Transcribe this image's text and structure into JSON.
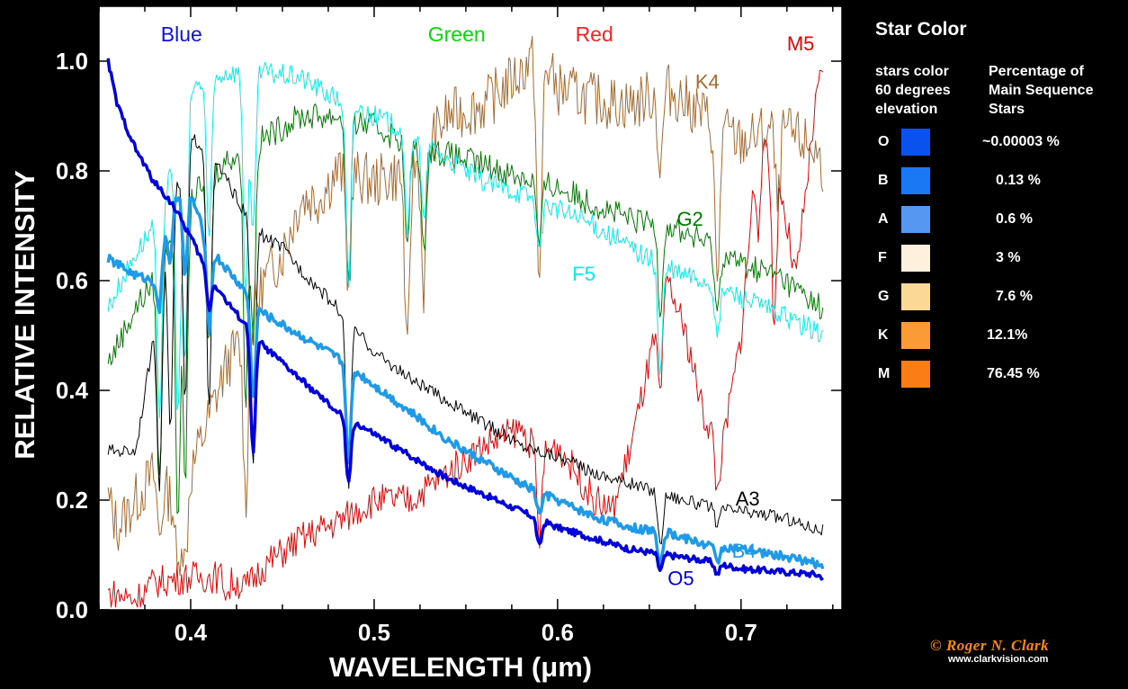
{
  "chart_data": {
    "type": "line",
    "xlabel": "WAVELENGTH (μm)",
    "ylabel": "RELATIVE INTENSITY",
    "xlim": [
      0.35,
      0.755
    ],
    "ylim": [
      0,
      1.1
    ],
    "xticks": [
      0.4,
      0.5,
      0.6,
      0.7
    ],
    "yticks": [
      0.0,
      0.2,
      0.4,
      0.6,
      0.8,
      1.0
    ],
    "band_labels": [
      {
        "text": "Blue",
        "x": 0.395,
        "color": "#1010ee"
      },
      {
        "text": "Green",
        "x": 0.545,
        "color": "#00dd00"
      },
      {
        "text": "Red",
        "x": 0.62,
        "color": "#ff2020"
      }
    ],
    "series": [
      {
        "name": "O5",
        "color": "#0000dd",
        "width": 3.5,
        "label_xy": [
          0.66,
          0.045
        ],
        "x": [
          0.355,
          0.36,
          0.37,
          0.38,
          0.39,
          0.4,
          0.41,
          0.42,
          0.43,
          0.44,
          0.45,
          0.46,
          0.47,
          0.48,
          0.49,
          0.5,
          0.52,
          0.54,
          0.56,
          0.58,
          0.6,
          0.62,
          0.64,
          0.66,
          0.68,
          0.7,
          0.72,
          0.74,
          0.745
        ],
        "y": [
          1.0,
          0.92,
          0.84,
          0.78,
          0.74,
          0.68,
          0.61,
          0.56,
          0.52,
          0.48,
          0.45,
          0.42,
          0.39,
          0.36,
          0.34,
          0.32,
          0.28,
          0.24,
          0.21,
          0.18,
          0.15,
          0.13,
          0.11,
          0.1,
          0.09,
          0.075,
          0.07,
          0.065,
          0.06
        ],
        "dips": [
          [
            0.41,
            0.06
          ],
          [
            0.434,
            0.22
          ],
          [
            0.486,
            0.12
          ],
          [
            0.59,
            0.05
          ],
          [
            0.656,
            0.03
          ],
          [
            0.687,
            0.02
          ]
        ],
        "noise": 0.006
      },
      {
        "name": "B4",
        "color": "#1e9ae8",
        "width": 3.5,
        "label_xy": [
          0.695,
          0.095
        ],
        "x": [
          0.355,
          0.36,
          0.37,
          0.38,
          0.39,
          0.4,
          0.41,
          0.42,
          0.43,
          0.44,
          0.45,
          0.46,
          0.48,
          0.5,
          0.52,
          0.54,
          0.56,
          0.58,
          0.6,
          0.62,
          0.64,
          0.66,
          0.68,
          0.7,
          0.72,
          0.74,
          0.745
        ],
        "y": [
          0.64,
          0.63,
          0.61,
          0.6,
          0.75,
          0.76,
          0.66,
          0.62,
          0.58,
          0.54,
          0.52,
          0.5,
          0.46,
          0.41,
          0.36,
          0.31,
          0.27,
          0.23,
          0.2,
          0.17,
          0.15,
          0.14,
          0.12,
          0.11,
          0.1,
          0.085,
          0.08
        ],
        "dips": [
          [
            0.383,
            0.1
          ],
          [
            0.389,
            0.1
          ],
          [
            0.397,
            0.15
          ],
          [
            0.41,
            0.15
          ],
          [
            0.434,
            0.18
          ],
          [
            0.486,
            0.18
          ],
          [
            0.59,
            0.04
          ],
          [
            0.656,
            0.06
          ],
          [
            0.687,
            0.03
          ]
        ],
        "noise": 0.008
      },
      {
        "name": "A3",
        "color": "#000000",
        "width": 1.0,
        "label_xy": [
          0.697,
          0.19
        ],
        "x": [
          0.355,
          0.37,
          0.38,
          0.39,
          0.4,
          0.41,
          0.42,
          0.43,
          0.44,
          0.45,
          0.46,
          0.48,
          0.5,
          0.52,
          0.54,
          0.56,
          0.58,
          0.6,
          0.62,
          0.64,
          0.66,
          0.68,
          0.7,
          0.72,
          0.74,
          0.745
        ],
        "y": [
          0.29,
          0.29,
          0.5,
          0.75,
          0.86,
          0.84,
          0.78,
          0.72,
          0.68,
          0.66,
          0.62,
          0.55,
          0.47,
          0.42,
          0.38,
          0.34,
          0.3,
          0.28,
          0.25,
          0.23,
          0.21,
          0.19,
          0.18,
          0.17,
          0.15,
          0.145
        ],
        "dips": [
          [
            0.383,
            0.35
          ],
          [
            0.389,
            0.4
          ],
          [
            0.397,
            0.45
          ],
          [
            0.41,
            0.48
          ],
          [
            0.434,
            0.45
          ],
          [
            0.486,
            0.3
          ],
          [
            0.656,
            0.1
          ],
          [
            0.687,
            0.04
          ]
        ],
        "noise": 0.012
      },
      {
        "name": "F5",
        "color": "#00f0f0",
        "width": 1.0,
        "label_xy": [
          0.608,
          0.6
        ],
        "x": [
          0.355,
          0.37,
          0.38,
          0.39,
          0.4,
          0.42,
          0.44,
          0.46,
          0.48,
          0.5,
          0.52,
          0.54,
          0.56,
          0.58,
          0.6,
          0.62,
          0.64,
          0.66,
          0.68,
          0.7,
          0.72,
          0.74,
          0.745
        ],
        "y": [
          0.55,
          0.65,
          0.7,
          0.8,
          0.95,
          0.98,
          0.98,
          0.97,
          0.93,
          0.9,
          0.87,
          0.82,
          0.78,
          0.76,
          0.73,
          0.7,
          0.66,
          0.62,
          0.6,
          0.57,
          0.54,
          0.51,
          0.5
        ],
        "dips": [
          [
            0.383,
            0.4
          ],
          [
            0.393,
            0.5
          ],
          [
            0.397,
            0.45
          ],
          [
            0.41,
            0.3
          ],
          [
            0.43,
            0.4
          ],
          [
            0.434,
            0.3
          ],
          [
            0.486,
            0.35
          ],
          [
            0.518,
            0.2
          ],
          [
            0.527,
            0.15
          ],
          [
            0.59,
            0.1
          ],
          [
            0.656,
            0.2
          ],
          [
            0.687,
            0.1
          ]
        ],
        "noise": 0.02
      },
      {
        "name": "G2",
        "color": "#007a00",
        "width": 1.0,
        "label_xy": [
          0.665,
          0.7
        ],
        "x": [
          0.355,
          0.37,
          0.38,
          0.39,
          0.4,
          0.42,
          0.44,
          0.46,
          0.48,
          0.5,
          0.52,
          0.54,
          0.56,
          0.58,
          0.6,
          0.62,
          0.64,
          0.66,
          0.68,
          0.7,
          0.72,
          0.74,
          0.745
        ],
        "y": [
          0.45,
          0.55,
          0.6,
          0.7,
          0.75,
          0.82,
          0.86,
          0.9,
          0.9,
          0.88,
          0.85,
          0.83,
          0.81,
          0.79,
          0.77,
          0.74,
          0.71,
          0.7,
          0.67,
          0.63,
          0.61,
          0.56,
          0.55
        ],
        "dips": [
          [
            0.383,
            0.4
          ],
          [
            0.393,
            0.55
          ],
          [
            0.397,
            0.5
          ],
          [
            0.41,
            0.3
          ],
          [
            0.43,
            0.45
          ],
          [
            0.434,
            0.35
          ],
          [
            0.486,
            0.3
          ],
          [
            0.518,
            0.2
          ],
          [
            0.527,
            0.2
          ],
          [
            0.59,
            0.12
          ],
          [
            0.656,
            0.15
          ],
          [
            0.687,
            0.12
          ]
        ],
        "noise": 0.025
      },
      {
        "name": "K4",
        "color": "#a86a30",
        "width": 1.0,
        "label_xy": [
          0.675,
          0.95
        ],
        "x": [
          0.355,
          0.36,
          0.37,
          0.38,
          0.39,
          0.4,
          0.41,
          0.42,
          0.43,
          0.44,
          0.45,
          0.46,
          0.47,
          0.48,
          0.5,
          0.52,
          0.54,
          0.56,
          0.58,
          0.59,
          0.6,
          0.62,
          0.64,
          0.66,
          0.68,
          0.7,
          0.72,
          0.74,
          0.745
        ],
        "y": [
          0.2,
          0.15,
          0.2,
          0.25,
          0.2,
          0.25,
          0.35,
          0.45,
          0.5,
          0.6,
          0.65,
          0.75,
          0.75,
          0.8,
          0.78,
          0.8,
          0.9,
          0.92,
          0.98,
          1.02,
          0.95,
          0.93,
          0.92,
          0.95,
          0.9,
          0.85,
          0.88,
          0.84,
          0.8
        ],
        "dips": [
          [
            0.383,
            0.1
          ],
          [
            0.393,
            0.15
          ],
          [
            0.397,
            0.15
          ],
          [
            0.43,
            0.3
          ],
          [
            0.486,
            0.2
          ],
          [
            0.518,
            0.35
          ],
          [
            0.527,
            0.25
          ],
          [
            0.59,
            0.45
          ],
          [
            0.656,
            0.15
          ],
          [
            0.687,
            0.3
          ],
          [
            0.72,
            0.15
          ]
        ],
        "noise": 0.05
      },
      {
        "name": "M5",
        "color": "#ee0000",
        "width": 1.0,
        "label_xy": [
          0.725,
          1.02
        ],
        "x": [
          0.355,
          0.37,
          0.38,
          0.4,
          0.42,
          0.43,
          0.44,
          0.46,
          0.48,
          0.5,
          0.52,
          0.54,
          0.56,
          0.58,
          0.59,
          0.6,
          0.62,
          0.63,
          0.64,
          0.65,
          0.66,
          0.67,
          0.68,
          0.69,
          0.7,
          0.71,
          0.72,
          0.73,
          0.74,
          0.745
        ],
        "y": [
          0.03,
          0.02,
          0.05,
          0.06,
          0.06,
          0.04,
          0.08,
          0.13,
          0.16,
          0.2,
          0.2,
          0.25,
          0.3,
          0.33,
          0.28,
          0.3,
          0.2,
          0.18,
          0.3,
          0.45,
          0.6,
          0.5,
          0.35,
          0.3,
          0.5,
          0.9,
          0.8,
          0.6,
          0.9,
          1.0
        ],
        "dips": [
          [
            0.42,
            0.03
          ],
          [
            0.59,
            0.15
          ],
          [
            0.656,
            0.15
          ],
          [
            0.687,
            0.1
          ],
          [
            0.71,
            0.2
          ],
          [
            0.718,
            0.3
          ]
        ],
        "noise": 0.03
      }
    ]
  },
  "sidebar": {
    "title": "Star Color",
    "col1_header": [
      "stars color",
      "60 degrees",
      "elevation"
    ],
    "col2_header": [
      "Percentage of",
      "Main Sequence",
      "Stars"
    ],
    "rows": [
      {
        "letter": "O",
        "color": "#0a52ee",
        "pct": "~0.00003 %"
      },
      {
        "letter": "B",
        "color": "#1a78f5",
        "pct": "0.13 %"
      },
      {
        "letter": "A",
        "color": "#5598f2",
        "pct": "0.6 %"
      },
      {
        "letter": "F",
        "color": "#fdf1dd",
        "pct": "3 %"
      },
      {
        "letter": "G",
        "color": "#fcd896",
        "pct": "7.6 %"
      },
      {
        "letter": "K",
        "color": "#fa9b36",
        "pct": "12.1%"
      },
      {
        "letter": "M",
        "color": "#fb7d16",
        "pct": "76.45 %"
      }
    ]
  },
  "credit": "© Roger N. Clark",
  "website": "www.clarkvision.com"
}
